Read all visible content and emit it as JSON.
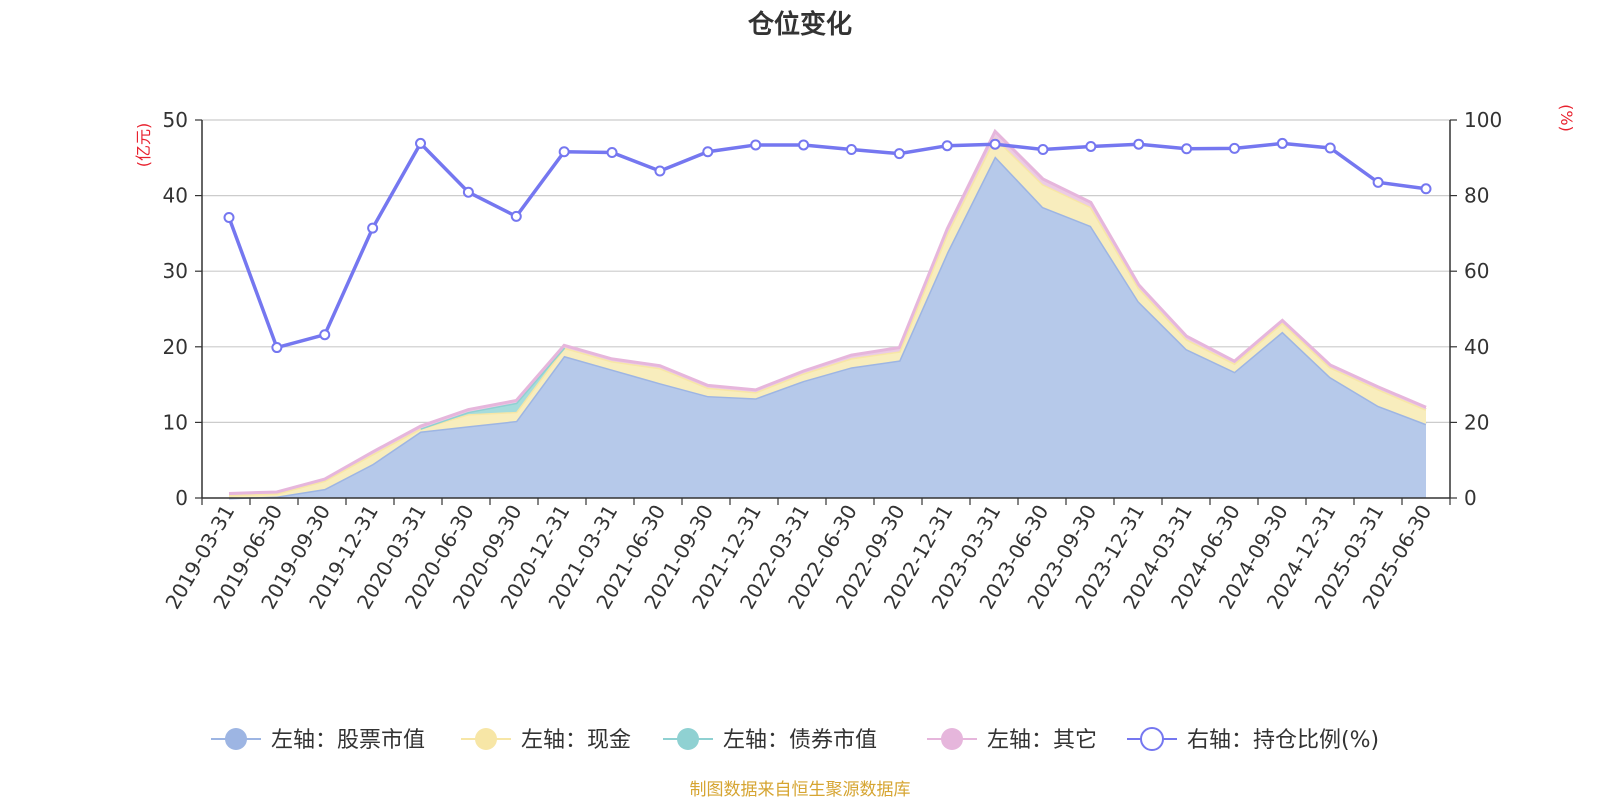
{
  "chart_data": {
    "type": "area",
    "title": "仓位变化",
    "left_axis_unit": "(亿元)",
    "right_axis_unit": "(%)",
    "ylim_left": [
      0,
      50
    ],
    "ylim_right": [
      0,
      100
    ],
    "yticks_left": [
      0,
      10,
      20,
      30,
      40,
      50
    ],
    "yticks_right": [
      0,
      20,
      40,
      60,
      80,
      100
    ],
    "grid": true,
    "legend_position": "bottom",
    "categories": [
      "2019-03-31",
      "2019-06-30",
      "2019-09-30",
      "2019-12-31",
      "2020-03-31",
      "2020-06-30",
      "2020-09-30",
      "2020-12-31",
      "2021-03-31",
      "2021-06-30",
      "2021-09-30",
      "2021-12-31",
      "2022-03-31",
      "2022-06-30",
      "2022-09-30",
      "2022-12-31",
      "2023-03-31",
      "2023-06-30",
      "2023-09-30",
      "2023-12-31",
      "2024-03-31",
      "2024-06-30",
      "2024-09-30",
      "2024-12-31",
      "2025-03-31",
      "2025-06-30"
    ],
    "series": [
      {
        "name": "左轴：股票市值",
        "axis": "left",
        "color": "#9db5e3",
        "fill": "#b6c9ea",
        "values": [
          0.0,
          0.2,
          1.2,
          4.5,
          8.8,
          9.5,
          10.2,
          18.8,
          17.0,
          15.2,
          13.5,
          13.2,
          15.5,
          17.3,
          18.2,
          32.5,
          45.2,
          38.5,
          36.0,
          26.0,
          19.7,
          16.7,
          22.0,
          16.0,
          12.2,
          9.8
        ]
      },
      {
        "name": "左轴：现金",
        "axis": "left",
        "color": "#f7e6a6",
        "fill": "#f8edbd",
        "values": [
          0.4,
          0.4,
          1.1,
          1.3,
          0.4,
          1.6,
          1.2,
          1.1,
          1.1,
          2.0,
          1.1,
          0.8,
          1.0,
          1.2,
          1.2,
          2.5,
          2.5,
          3.0,
          2.5,
          1.8,
          1.3,
          1.1,
          1.2,
          1.3,
          2.2,
          1.9
        ]
      },
      {
        "name": "左轴：债券市值",
        "axis": "left",
        "color": "#8fd1d2",
        "fill": "#a6dcdc",
        "values": [
          0,
          0,
          0,
          0,
          0,
          0.3,
          1.2,
          0,
          0,
          0,
          0,
          0,
          0,
          0,
          0,
          0,
          0,
          0,
          0,
          0,
          0,
          0,
          0,
          0,
          0,
          0
        ]
      },
      {
        "name": "左轴：其它",
        "axis": "left",
        "color": "#e6b6dc",
        "fill": "#eccbe4",
        "values": [
          0.2,
          0.2,
          0.2,
          0.3,
          0.3,
          0.3,
          0.3,
          0.3,
          0.3,
          0.3,
          0.3,
          0.3,
          0.3,
          0.4,
          0.5,
          0.6,
          0.8,
          0.7,
          0.6,
          0.4,
          0.4,
          0.3,
          0.3,
          0.3,
          0.3,
          0.3
        ]
      },
      {
        "name": "右轴：持仓比例(%)",
        "axis": "right",
        "color": "#7577f0",
        "values": [
          74.2,
          39.8,
          43.2,
          71.4,
          93.8,
          80.9,
          74.5,
          91.6,
          91.4,
          86.5,
          91.6,
          93.4,
          93.4,
          92.2,
          91.1,
          93.2,
          93.6,
          92.2,
          93.0,
          93.6,
          92.4,
          92.5,
          93.8,
          92.6,
          83.5,
          81.8
        ]
      }
    ],
    "colors": {
      "title": "#333333",
      "axis_unit": "#e8212e",
      "source": "#d6a532",
      "grid": "#cccccc"
    }
  },
  "source_note": "制图数据来自恒生聚源数据库"
}
